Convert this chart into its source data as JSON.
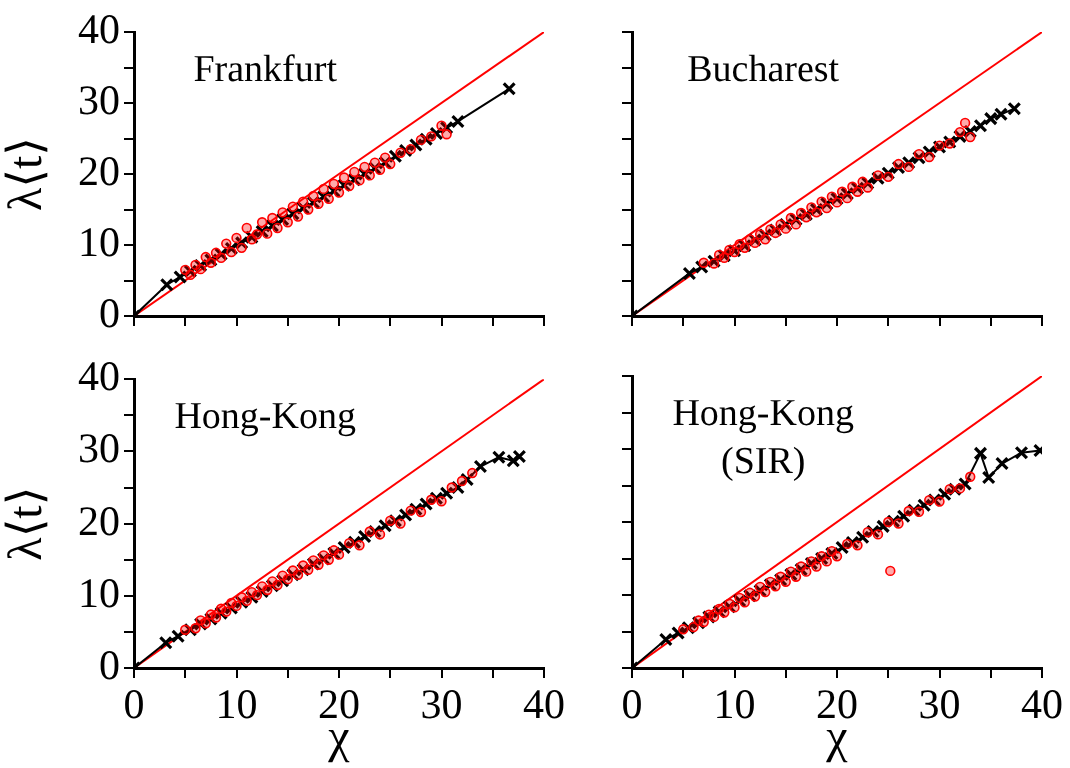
{
  "chart_data": [
    {
      "type": "scatter",
      "annotations": [
        "Frankfurt"
      ],
      "ylabel": "λ⟨t⟩",
      "xlim": [
        0,
        40
      ],
      "ylim": [
        0,
        40
      ],
      "xticks": [
        0,
        {
          "value": 5,
          "label": null
        },
        10,
        {
          "value": 15,
          "label": null
        },
        20,
        {
          "value": 25,
          "label": null
        },
        30,
        {
          "value": 35,
          "label": null
        },
        40
      ],
      "yticks": [
        0,
        {
          "value": 5,
          "label": null
        },
        10,
        {
          "value": 15,
          "label": null
        },
        20,
        {
          "value": 25,
          "label": null
        },
        30,
        {
          "value": 35,
          "label": null
        },
        40
      ],
      "tick_labels": "y",
      "series": [
        {
          "type": "scatter",
          "marker": "circle",
          "color": "#ff0000",
          "x": [
            5,
            5.5,
            6,
            6.5,
            7,
            7.5,
            8,
            8.5,
            9,
            9.5,
            10,
            10.5,
            11,
            11.5,
            12,
            12.5,
            13,
            13.5,
            14,
            14.5,
            15,
            15.5,
            16,
            16.5,
            17,
            17.5,
            18,
            18.5,
            19,
            19.5,
            20,
            20.5,
            21,
            21.5,
            22,
            22.5,
            23,
            23.5,
            24,
            24.5,
            25,
            26,
            27,
            28,
            29,
            30,
            30.5
          ],
          "values": [
            6.5,
            5.8,
            7.2,
            6.6,
            8.3,
            7.5,
            8.9,
            8.2,
            10.2,
            9.0,
            11.0,
            9.6,
            12.4,
            10.8,
            11.5,
            13.2,
            11.6,
            13.8,
            12.4,
            14.6,
            13.2,
            15.4,
            14.0,
            16.1,
            15.0,
            16.9,
            15.8,
            17.9,
            16.5,
            18.6,
            17.4,
            19.5,
            18.3,
            20.3,
            19.1,
            21.0,
            19.8,
            21.6,
            20.6,
            22.3,
            21.4,
            23.0,
            23.5,
            24.8,
            25.3,
            26.8,
            25.6
          ]
        },
        {
          "type": "line",
          "marker": "cross",
          "color": "#000000",
          "x": [
            0,
            3.2,
            4.5,
            5.5,
            6.5,
            7.5,
            8.5,
            9.5,
            10.5,
            11.5,
            12.5,
            13.5,
            14.5,
            15.5,
            16.5,
            17.5,
            18.5,
            19.5,
            20.5,
            21.5,
            22.5,
            23.5,
            24.5,
            25.5,
            26.5,
            27.5,
            28.5,
            29.5,
            30.5,
            31.6,
            36.6
          ],
          "values": [
            0,
            4.4,
            5.5,
            6.3,
            7.1,
            7.9,
            8.7,
            9.5,
            10.3,
            11.1,
            11.9,
            12.7,
            13.6,
            14.4,
            15.2,
            16.0,
            16.8,
            17.6,
            18.4,
            19.2,
            20.0,
            20.8,
            21.6,
            22.5,
            23.3,
            24.1,
            24.9,
            25.7,
            26.5,
            27.4,
            32
          ]
        },
        {
          "type": "line",
          "marker": "none",
          "color": "#ff0000",
          "x": [
            0,
            40
          ],
          "values": [
            0,
            40
          ]
        }
      ]
    },
    {
      "type": "scatter",
      "annotations": [
        "Bucharest"
      ],
      "xlim": [
        0,
        40
      ],
      "ylim": [
        0,
        40
      ],
      "xticks": [
        0,
        {
          "value": 5,
          "label": null
        },
        10,
        {
          "value": 15,
          "label": null
        },
        20,
        {
          "value": 25,
          "label": null
        },
        30,
        {
          "value": 35,
          "label": null
        },
        40
      ],
      "yticks": [
        0,
        {
          "value": 5,
          "label": null
        },
        10,
        {
          "value": 15,
          "label": null
        },
        20,
        {
          "value": 25,
          "label": null
        },
        30,
        {
          "value": 35,
          "label": null
        },
        40
      ],
      "tick_labels": false,
      "series": [
        {
          "type": "scatter",
          "marker": "circle",
          "color": "#ff0000",
          "x": [
            7,
            8,
            8.5,
            9,
            9.5,
            10,
            10.5,
            11,
            11.5,
            12,
            12.5,
            13,
            13.5,
            14,
            14.5,
            15,
            15.5,
            16,
            16.5,
            17,
            17.5,
            18,
            18.5,
            19,
            19.5,
            20,
            20.5,
            21,
            21.5,
            22,
            22.5,
            23,
            24,
            25,
            26,
            27,
            28,
            29,
            30,
            31,
            32,
            33,
            32.5
          ],
          "values": [
            7.5,
            7.4,
            8.6,
            8.2,
            9.3,
            9.0,
            10.1,
            9.6,
            10.8,
            10.3,
            11.5,
            10.8,
            12.2,
            11.7,
            12.9,
            12.3,
            13.8,
            12.9,
            14.5,
            13.9,
            15.3,
            14.6,
            16.1,
            15.2,
            16.8,
            16.0,
            17.5,
            16.6,
            18.2,
            17.5,
            18.9,
            18.1,
            19.8,
            19.6,
            21.4,
            21.0,
            22.8,
            22.4,
            24.0,
            24.3,
            25.9,
            25.2,
            27.2
          ]
        },
        {
          "type": "line",
          "marker": "cross",
          "color": "#000000",
          "x": [
            0,
            5.6,
            6.8,
            8,
            9,
            10,
            11,
            12,
            13,
            14,
            15,
            16,
            17,
            18,
            19,
            20,
            21,
            22,
            23,
            24,
            25,
            26,
            27,
            28,
            29,
            30,
            31,
            32,
            33,
            34,
            35,
            36,
            37.3
          ],
          "values": [
            0,
            6.0,
            6.9,
            7.7,
            8.5,
            9.2,
            9.9,
            10.7,
            11.4,
            12.1,
            12.9,
            13.6,
            14.3,
            15.0,
            15.8,
            16.5,
            17.2,
            18.0,
            18.7,
            19.4,
            20.1,
            20.9,
            21.6,
            22.3,
            23.1,
            23.8,
            24.5,
            25.3,
            26.0,
            26.8,
            27.8,
            28.4,
            29.2
          ]
        },
        {
          "type": "line",
          "marker": "none",
          "color": "#ff0000",
          "x": [
            0,
            40
          ],
          "values": [
            0,
            40
          ]
        }
      ]
    },
    {
      "type": "scatter",
      "annotations": [
        "Hong-Kong"
      ],
      "xlabel": "χ",
      "ylabel": "λ⟨t⟩",
      "xlim": [
        0,
        40
      ],
      "ylim": [
        0,
        40
      ],
      "xticks": [
        0,
        {
          "value": 5,
          "label": null
        },
        10,
        {
          "value": 15,
          "label": null
        },
        20,
        {
          "value": 25,
          "label": null
        },
        30,
        {
          "value": 35,
          "label": null
        },
        40
      ],
      "yticks": [
        0,
        {
          "value": 5,
          "label": null
        },
        10,
        {
          "value": 15,
          "label": null
        },
        20,
        {
          "value": 25,
          "label": null
        },
        30,
        {
          "value": 35,
          "label": null
        },
        40
      ],
      "series": [
        {
          "type": "scatter",
          "marker": "circle",
          "color": "#ff0000",
          "x": [
            5,
            6,
            6.5,
            7,
            7.5,
            8,
            8.5,
            9,
            9.5,
            10,
            10.5,
            11,
            11.5,
            12,
            12.5,
            13,
            13.5,
            14,
            14.5,
            15,
            15.5,
            16,
            16.5,
            17,
            17.5,
            18,
            18.5,
            19,
            19.5,
            20,
            21,
            22,
            23,
            24,
            25,
            26,
            27,
            28,
            29,
            30,
            31,
            32,
            33
          ],
          "values": [
            5.3,
            5.5,
            6.6,
            6.2,
            7.4,
            7.0,
            8.2,
            7.8,
            9.0,
            8.6,
            9.8,
            9.3,
            10.5,
            10.1,
            11.3,
            10.8,
            12.0,
            11.5,
            12.8,
            12.3,
            13.5,
            12.9,
            14.2,
            13.6,
            14.9,
            14.3,
            15.6,
            15.0,
            16.3,
            15.7,
            17.3,
            17.0,
            18.9,
            18.5,
            20.4,
            20.0,
            21.8,
            21.6,
            23.3,
            23.1,
            25.0,
            25.9,
            27.0
          ]
        },
        {
          "type": "line",
          "marker": "cross",
          "color": "#000000",
          "x": [
            0,
            3.1,
            4.3,
            5.5,
            6.5,
            7.5,
            8.5,
            9.5,
            10.5,
            11.5,
            12.5,
            13.5,
            14.5,
            15.5,
            16.5,
            17.5,
            18.5,
            19.5,
            20.5,
            21.5,
            22.5,
            23.5,
            24.5,
            25.5,
            26.5,
            27.5,
            28.5,
            29.5,
            30.5,
            31.6,
            32.5,
            33.8,
            35.6,
            37,
            37.6
          ],
          "values": [
            0,
            3.5,
            4.4,
            5.3,
            6.1,
            6.8,
            7.6,
            8.3,
            9.1,
            9.8,
            10.6,
            11.4,
            12.1,
            12.9,
            13.6,
            14.4,
            15.1,
            15.9,
            16.7,
            17.4,
            18.2,
            18.9,
            19.7,
            20.4,
            21.2,
            22.0,
            22.7,
            23.5,
            24.2,
            25.0,
            26.1,
            27.9,
            29.2,
            28.7,
            29.3
          ]
        },
        {
          "type": "line",
          "marker": "none",
          "color": "#ff0000",
          "x": [
            0,
            40
          ],
          "values": [
            0,
            40
          ]
        }
      ]
    },
    {
      "type": "scatter",
      "annotations": [
        "Hong-Kong",
        "(SIR)"
      ],
      "xlabel": "χ",
      "xlim": [
        0,
        40
      ],
      "ylim": [
        0,
        40
      ],
      "xticks": [
        0,
        {
          "value": 5,
          "label": null
        },
        10,
        {
          "value": 15,
          "label": null
        },
        20,
        {
          "value": 25,
          "label": null
        },
        30,
        {
          "value": 35,
          "label": null
        },
        40
      ],
      "yticks": [
        0,
        {
          "value": 5,
          "label": null
        },
        10,
        {
          "value": 15,
          "label": null
        },
        20,
        {
          "value": 25,
          "label": null
        },
        30,
        {
          "value": 35,
          "label": null
        },
        40
      ],
      "tick_labels": "x",
      "series": [
        {
          "type": "scatter",
          "marker": "circle",
          "color": "#ff0000",
          "x": [
            5,
            6,
            6.5,
            7,
            7.5,
            8,
            8.5,
            9,
            9.5,
            10,
            10.5,
            11,
            11.5,
            12,
            12.5,
            13,
            13.5,
            14,
            14.5,
            15,
            15.5,
            16,
            16.5,
            17,
            17.5,
            18,
            18.5,
            19,
            19.5,
            20,
            21,
            22,
            23,
            24,
            25,
            25.2,
            26,
            27,
            28,
            29,
            30,
            31,
            32,
            33
          ],
          "values": [
            5.3,
            5.6,
            6.5,
            6.3,
            7.3,
            7.0,
            8.1,
            7.6,
            8.8,
            8.3,
            9.6,
            9.0,
            10.3,
            9.8,
            11.1,
            10.4,
            11.8,
            11.2,
            12.5,
            11.8,
            13.2,
            12.5,
            13.9,
            13.2,
            14.6,
            13.9,
            15.3,
            14.6,
            16.0,
            15.3,
            17.0,
            16.8,
            18.6,
            18.3,
            20.0,
            13.3,
            19.8,
            21.5,
            21.4,
            23.0,
            22.8,
            24.5,
            24.6,
            26.2
          ]
        },
        {
          "type": "line",
          "marker": "cross",
          "color": "#000000",
          "x": [
            0,
            3.3,
            4.5,
            5.5,
            6.5,
            7.5,
            8.5,
            9.5,
            10.5,
            11.5,
            12.5,
            13.5,
            14.5,
            15.5,
            16.5,
            17.5,
            18.5,
            19.5,
            20.5,
            21.5,
            22.5,
            23.5,
            24.5,
            25.5,
            26.5,
            27.5,
            28.5,
            29.5,
            30.5,
            31.5,
            32.5,
            34,
            34.8,
            36.1,
            38,
            39.8
          ],
          "values": [
            0,
            3.9,
            4.8,
            5.5,
            6.2,
            7.0,
            7.7,
            8.4,
            9.2,
            9.9,
            10.6,
            11.4,
            12.1,
            12.8,
            13.5,
            14.3,
            15.0,
            15.7,
            16.5,
            17.2,
            17.9,
            18.7,
            19.4,
            20.1,
            20.8,
            21.6,
            22.3,
            23.0,
            23.8,
            24.5,
            25.2,
            29.4,
            26.1,
            28,
            29.5,
            29.8
          ]
        },
        {
          "type": "line",
          "marker": "none",
          "color": "#ff0000",
          "x": [
            0,
            40
          ],
          "values": [
            0,
            40
          ]
        }
      ]
    }
  ]
}
